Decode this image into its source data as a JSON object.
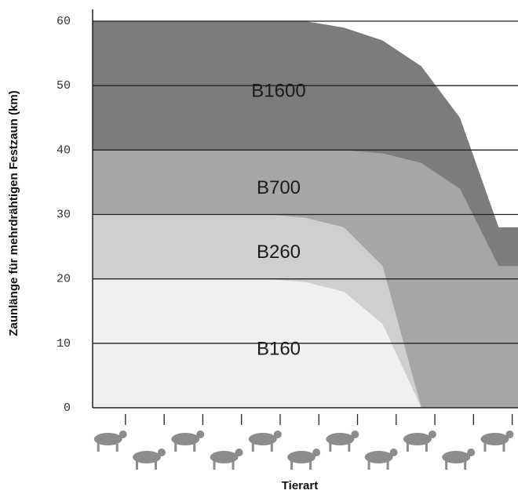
{
  "chart_data": {
    "type": "area",
    "y_label": "Zaunlänge für mehrdrähtigen Festzaun  (km)",
    "x_label": "Tierart",
    "categories": [
      null,
      null,
      null,
      null,
      null,
      null,
      null,
      null,
      null,
      null,
      null
    ],
    "series": [
      {
        "name": "B160",
        "color": "#f0f0f0",
        "values": [
          20,
          20,
          20,
          20,
          20,
          19.5,
          18,
          13,
          0,
          0,
          0
        ]
      },
      {
        "name": "B260",
        "color": "#cfcfcf",
        "values": [
          30,
          30,
          30,
          30,
          30,
          29.5,
          28,
          22,
          0,
          0,
          0
        ]
      },
      {
        "name": "B700",
        "color": "#a6a6a6",
        "values": [
          40,
          40,
          40,
          40,
          40,
          40,
          40,
          39.5,
          38,
          34,
          22
        ]
      },
      {
        "name": "B1600",
        "color": "#7c7c7c",
        "values": [
          60,
          60,
          60,
          60,
          60,
          60,
          59,
          57,
          53,
          45,
          28
        ]
      }
    ],
    "ylim": [
      0,
      60
    ],
    "yticks": [
      0,
      10,
      20,
      30,
      40,
      50,
      60
    ],
    "grid": true
  }
}
